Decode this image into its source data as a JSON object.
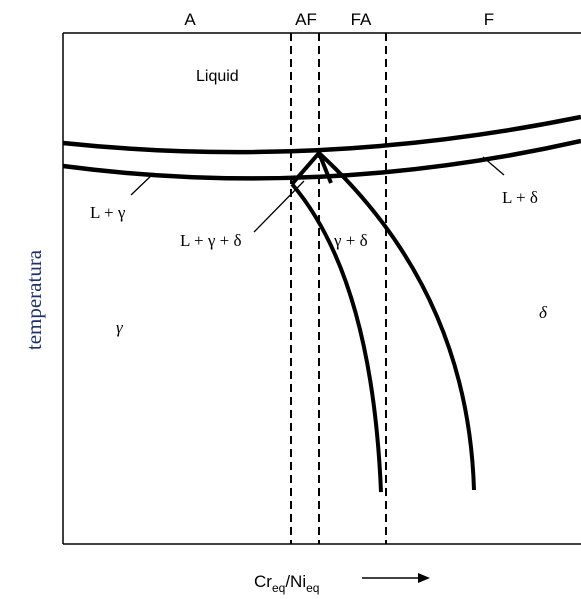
{
  "regions": {
    "A": "A",
    "AF": "AF",
    "FA": "FA",
    "F": "F"
  },
  "labels": {
    "liquid": "Liquid",
    "l_gamma": "L + γ",
    "l_gamma_delta": "L + γ + δ",
    "gamma_delta": "γ + δ",
    "l_delta": "L + δ",
    "gamma": "γ",
    "delta": "δ"
  },
  "axes": {
    "ylabel": "temperatura",
    "xlabel_base1": "Cr",
    "xlabel_sub1": "eq",
    "xlabel_sep": "/Ni",
    "xlabel_sub2": "eq"
  }
}
